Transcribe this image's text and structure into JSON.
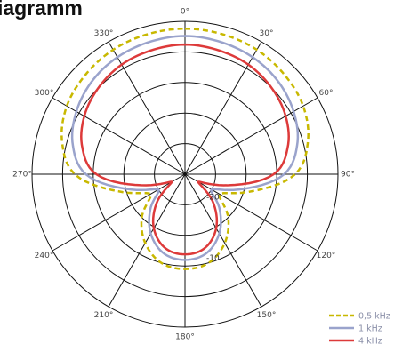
{
  "chart_data": {
    "type": "polar-line",
    "title": "iagramm",
    "angle_labels": [
      {
        "deg": 0,
        "text": "0°"
      },
      {
        "deg": 30,
        "text": "30°"
      },
      {
        "deg": 60,
        "text": "60°"
      },
      {
        "deg": 90,
        "text": "90°"
      },
      {
        "deg": 120,
        "text": "120°"
      },
      {
        "deg": 150,
        "text": "150°"
      },
      {
        "deg": 180,
        "text": "180°"
      },
      {
        "deg": 210,
        "text": "210°"
      },
      {
        "deg": 240,
        "text": "240°"
      },
      {
        "deg": 270,
        "text": "270°"
      },
      {
        "deg": 300,
        "text": "300°"
      },
      {
        "deg": 330,
        "text": "330°"
      }
    ],
    "radial_range": [
      -25,
      0
    ],
    "rings": [
      {
        "value": -20,
        "label": "-20"
      },
      {
        "value": -15,
        "label": ""
      },
      {
        "value": -10,
        "label": "-10"
      },
      {
        "value": -5,
        "label": ""
      },
      {
        "value": 0,
        "label": ""
      }
    ],
    "series": [
      {
        "name": "0,5 kHz",
        "color": "#c8b800",
        "dash": true,
        "angles": [
          0,
          15,
          30,
          45,
          60,
          75,
          90,
          105,
          120,
          135,
          150,
          165,
          180,
          195,
          210,
          225,
          240,
          255,
          270,
          285,
          300,
          315,
          330,
          345
        ],
        "values": [
          -1.2,
          -1.3,
          -1.5,
          -2.0,
          -2.7,
          -4.2,
          -7.0,
          -14.0,
          -18.5,
          -15.0,
          -12.0,
          -10.0,
          -9.5,
          -10.0,
          -12.0,
          -15.0,
          -18.5,
          -14.0,
          -7.0,
          -4.2,
          -2.7,
          -2.0,
          -1.5,
          -1.3
        ]
      },
      {
        "name": "1 kHz",
        "color": "#9aa3cc",
        "dash": false,
        "angles": [
          0,
          15,
          30,
          45,
          60,
          75,
          90,
          105,
          120,
          135,
          150,
          165,
          180,
          195,
          210,
          225,
          240,
          255,
          270,
          285,
          300,
          315,
          330,
          345
        ],
        "values": [
          -2.4,
          -2.6,
          -2.9,
          -3.5,
          -4.5,
          -6.0,
          -8.8,
          -15.5,
          -20.0,
          -17.0,
          -13.8,
          -11.6,
          -11.0,
          -11.6,
          -13.8,
          -17.0,
          -20.0,
          -15.5,
          -8.8,
          -6.0,
          -4.5,
          -3.5,
          -2.9,
          -2.6
        ]
      },
      {
        "name": "4 kHz",
        "color": "#dd3a3a",
        "dash": false,
        "angles": [
          0,
          15,
          30,
          45,
          60,
          75,
          90,
          105,
          120,
          135,
          150,
          165,
          180,
          195,
          210,
          225,
          240,
          255,
          270,
          285,
          300,
          315,
          330,
          345
        ],
        "values": [
          -3.8,
          -4.0,
          -4.3,
          -5.0,
          -6.0,
          -7.6,
          -10.5,
          -18.0,
          -22.5,
          -18.5,
          -14.8,
          -12.5,
          -11.9,
          -12.5,
          -14.8,
          -18.5,
          -22.5,
          -18.0,
          -10.5,
          -7.6,
          -6.0,
          -5.0,
          -4.3,
          -4.0
        ]
      }
    ],
    "legend_position": "bottom-right",
    "grid": true
  }
}
